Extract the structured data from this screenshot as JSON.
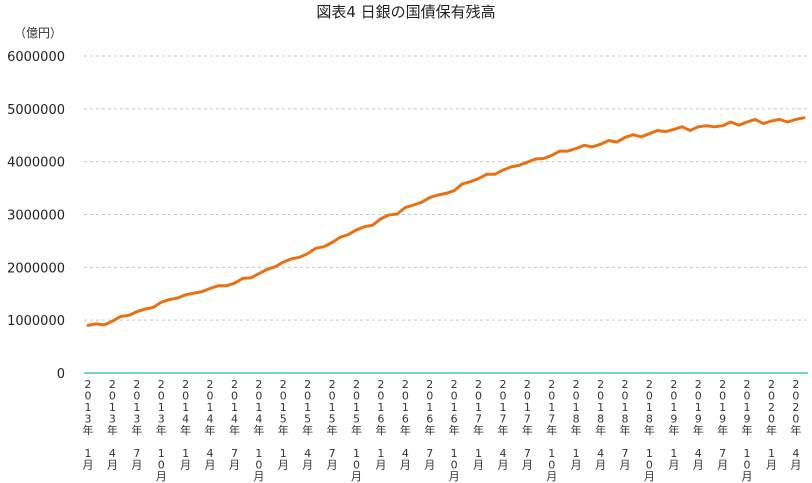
{
  "chart_data": {
    "type": "line",
    "title": "図表4 日銀の国債保有残高",
    "unit_label": "（億円）",
    "ylim": [
      0,
      6000000
    ],
    "yticks": [
      "0",
      "1000000",
      "2000000",
      "3000000",
      "4000000",
      "5000000",
      "6000000"
    ],
    "grid": true,
    "x": [
      "2013年1月",
      "2013年2月",
      "2013年3月",
      "2013年4月",
      "2013年5月",
      "2013年6月",
      "2013年7月",
      "2013年8月",
      "2013年9月",
      "2013年10月",
      "2013年11月",
      "2013年12月",
      "2014年1月",
      "2014年2月",
      "2014年3月",
      "2014年4月",
      "2014年5月",
      "2014年6月",
      "2014年7月",
      "2014年8月",
      "2014年9月",
      "2014年10月",
      "2014年11月",
      "2014年12月",
      "2015年1月",
      "2015年2月",
      "2015年3月",
      "2015年4月",
      "2015年5月",
      "2015年6月",
      "2015年7月",
      "2015年8月",
      "2015年9月",
      "2015年10月",
      "2015年11月",
      "2015年12月",
      "2016年1月",
      "2016年2月",
      "2016年3月",
      "2016年4月",
      "2016年5月",
      "2016年6月",
      "2016年7月",
      "2016年8月",
      "2016年9月",
      "2016年10月",
      "2016年11月",
      "2016年12月",
      "2017年1月",
      "2017年2月",
      "2017年3月",
      "2017年4月",
      "2017年5月",
      "2017年6月",
      "2017年7月",
      "2017年8月",
      "2017年9月",
      "2017年10月",
      "2017年11月",
      "2017年12月",
      "2018年1月",
      "2018年2月",
      "2018年3月",
      "2018年4月",
      "2018年5月",
      "2018年6月",
      "2018年7月",
      "2018年8月",
      "2018年9月",
      "2018年10月",
      "2018年11月",
      "2018年12月",
      "2019年1月",
      "2019年2月",
      "2019年3月",
      "2019年4月",
      "2019年5月",
      "2019年6月",
      "2019年7月",
      "2019年8月",
      "2019年9月",
      "2019年10月",
      "2019年11月",
      "2019年12月",
      "2020年1月",
      "2020年2月",
      "2020年3月",
      "2020年4月",
      "2020年5月"
    ],
    "xtick_labels": [
      "2013年1月",
      "2013年4月",
      "2013年7月",
      "2013年10月",
      "2014年1月",
      "2014年4月",
      "2014年7月",
      "2014年10月",
      "2015年1月",
      "2015年4月",
      "2015年7月",
      "2015年10月",
      "2016年1月",
      "2016年4月",
      "2016年7月",
      "2016年10月",
      "2017年1月",
      "2017年4月",
      "2017年7月",
      "2017年10月",
      "2018年1月",
      "2018年4月",
      "2018年7月",
      "2018年10月",
      "2019年1月",
      "2019年4月",
      "2019年7月",
      "2019年10月",
      "2020年1月",
      "2020年4月"
    ],
    "series": [
      {
        "color": "#e87114",
        "values": [
          900000,
          930000,
          910000,
          980000,
          1070000,
          1090000,
          1160000,
          1210000,
          1240000,
          1340000,
          1390000,
          1420000,
          1480000,
          1510000,
          1540000,
          1600000,
          1650000,
          1650000,
          1700000,
          1790000,
          1800000,
          1880000,
          1960000,
          2010000,
          2100000,
          2160000,
          2190000,
          2260000,
          2360000,
          2390000,
          2470000,
          2570000,
          2620000,
          2710000,
          2770000,
          2800000,
          2920000,
          2990000,
          3010000,
          3130000,
          3180000,
          3230000,
          3320000,
          3370000,
          3400000,
          3450000,
          3580000,
          3620000,
          3680000,
          3760000,
          3760000,
          3840000,
          3900000,
          3930000,
          3990000,
          4050000,
          4060000,
          4120000,
          4200000,
          4200000,
          4250000,
          4310000,
          4280000,
          4330000,
          4400000,
          4370000,
          4460000,
          4510000,
          4470000,
          4530000,
          4590000,
          4570000,
          4610000,
          4660000,
          4590000,
          4660000,
          4680000,
          4660000,
          4680000,
          4750000,
          4690000,
          4750000,
          4800000,
          4720000,
          4770000,
          4800000,
          4750000,
          4800000,
          4830000
        ]
      }
    ]
  }
}
